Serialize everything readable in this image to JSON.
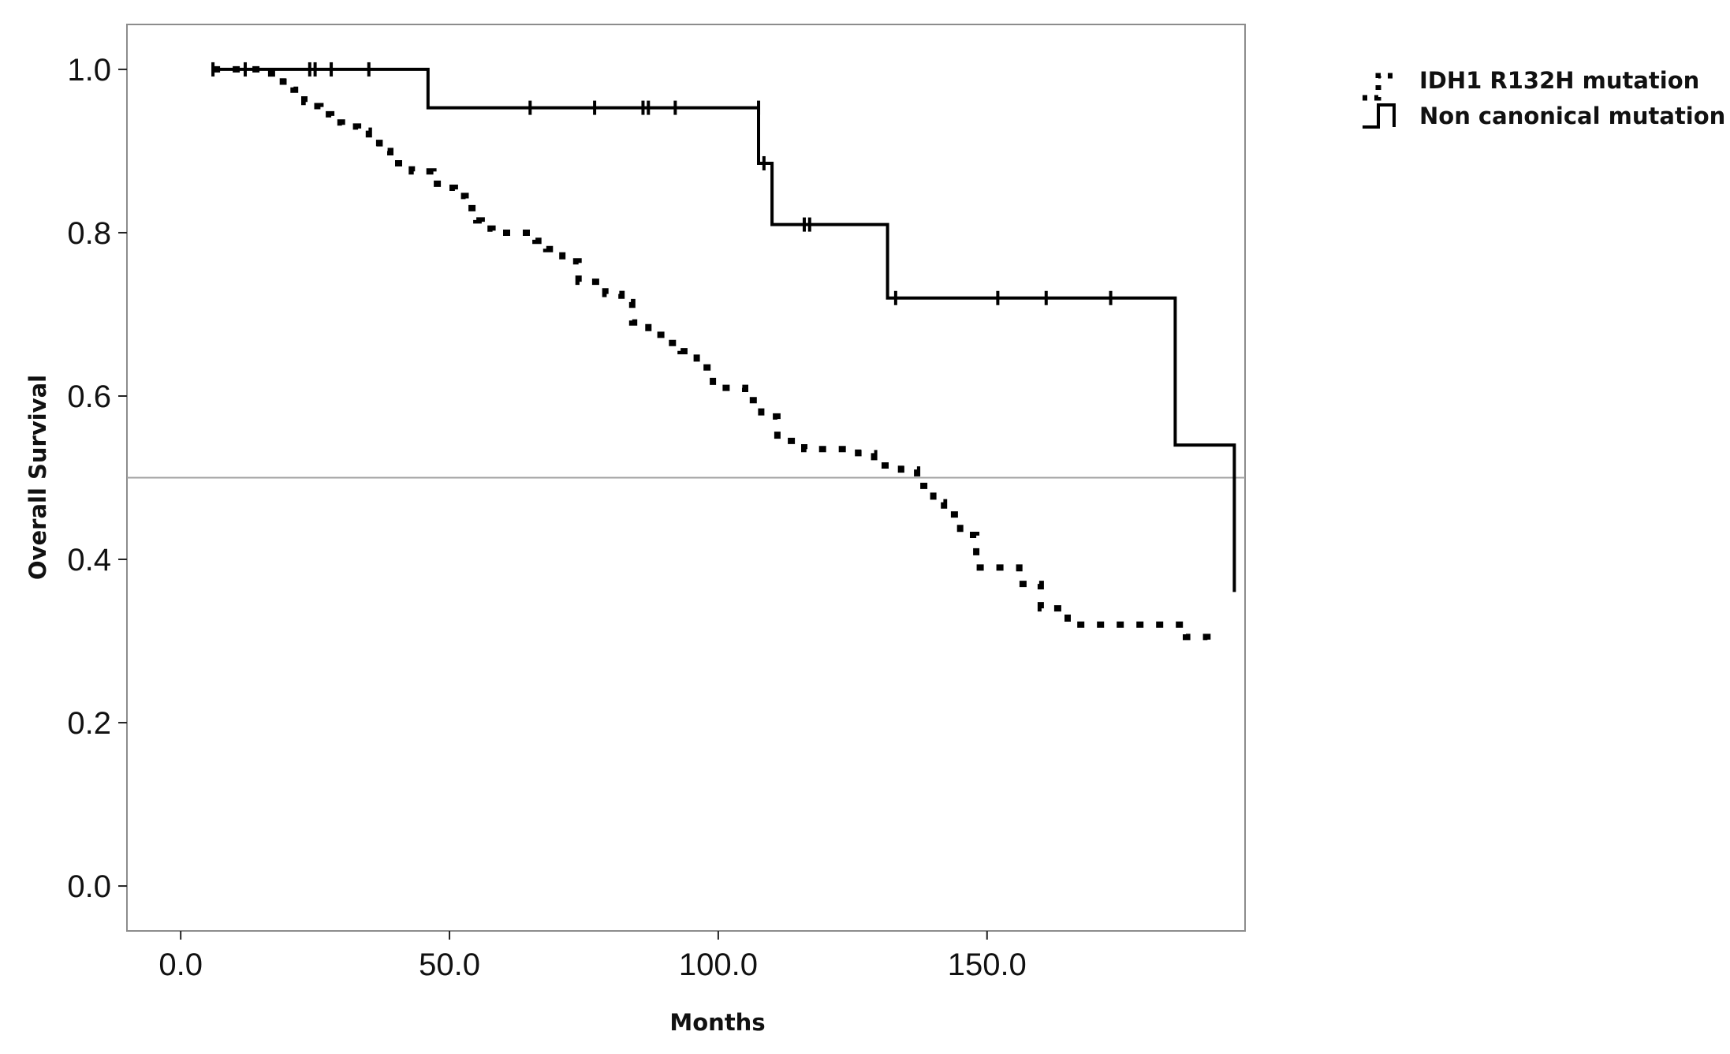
{
  "chart_data": {
    "type": "line",
    "title": "",
    "xlabel": "Months",
    "ylabel": "Overall Survival",
    "xlim": [
      -10,
      198
    ],
    "ylim": [
      -0.055,
      1.055
    ],
    "x_ticks": [
      0,
      50,
      100,
      150
    ],
    "x_tick_labels": [
      "0.0",
      "50.0",
      "100.0",
      "150.0"
    ],
    "y_ticks": [
      0,
      0.2,
      0.4,
      0.6,
      0.8,
      1.0
    ],
    "y_tick_labels": [
      "0.0",
      "0.2",
      "0.4",
      "0.6",
      "0.8",
      "1.0"
    ],
    "reference_line": {
      "y": 0.5
    },
    "grid": false,
    "legend_position": "top-right, outside plot",
    "series": [
      {
        "name": "IDH1 R132H mutation",
        "style": "dotted",
        "color": "#000000",
        "x": [
          6,
          10,
          15,
          19,
          21,
          23,
          24,
          26,
          28,
          30,
          33,
          35,
          37,
          39,
          40,
          43,
          47,
          49,
          51,
          53,
          55,
          56,
          58,
          62,
          66,
          68,
          71,
          74,
          77,
          79,
          82,
          84,
          87,
          90,
          93,
          96,
          99,
          103,
          105,
          108,
          111,
          116,
          121,
          126,
          129,
          134,
          137,
          140,
          142,
          145,
          148,
          151,
          156,
          160,
          165,
          172,
          180,
          184,
          187,
          191
        ],
        "y": [
          1.0,
          1.0,
          0.995,
          0.985,
          0.975,
          0.96,
          0.955,
          0.945,
          0.935,
          0.93,
          0.925,
          0.91,
          0.9,
          0.885,
          0.885,
          0.875,
          0.86,
          0.855,
          0.845,
          0.83,
          0.815,
          0.805,
          0.8,
          0.8,
          0.79,
          0.78,
          0.765,
          0.74,
          0.74,
          0.725,
          0.715,
          0.69,
          0.675,
          0.665,
          0.655,
          0.635,
          0.61,
          0.61,
          0.595,
          0.575,
          0.545,
          0.535,
          0.535,
          0.53,
          0.515,
          0.51,
          0.49,
          0.47,
          0.455,
          0.43,
          0.39,
          0.39,
          0.37,
          0.34,
          0.32,
          0.32,
          0.32,
          0.32,
          0.305,
          0.295
        ]
      },
      {
        "name": "Non canonical mutation",
        "style": "solid",
        "color": "#000000",
        "x": [
          6,
          46,
          107.5,
          110,
          131.5,
          185,
          196,
          196
        ],
        "y": [
          1.0,
          0.953,
          0.885,
          0.81,
          0.72,
          0.54,
          0.54,
          0.36
        ],
        "censored": {
          "x": [
            6,
            12,
            24,
            25,
            28,
            35,
            65,
            77,
            86,
            87,
            92,
            107.5,
            108.5,
            116,
            117,
            133,
            152,
            161,
            173
          ],
          "y": [
            1.0,
            1.0,
            1.0,
            1.0,
            1.0,
            1.0,
            0.953,
            0.953,
            0.953,
            0.953,
            0.953,
            0.953,
            0.885,
            0.81,
            0.81,
            0.72,
            0.72,
            0.72,
            0.72
          ]
        }
      }
    ]
  }
}
